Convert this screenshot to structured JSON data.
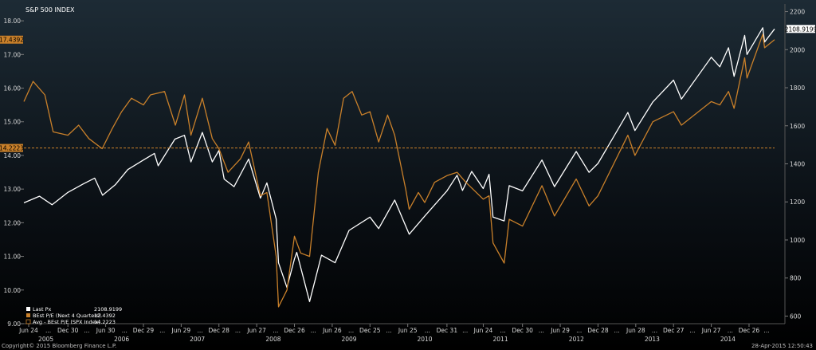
{
  "chart_data": {
    "type": "line",
    "title": "S&P 500 INDEX",
    "x_range": [
      "2005-06-01",
      "2015-04-28"
    ],
    "y_left_range": [
      9.0,
      18.5
    ],
    "y_right_range": [
      560,
      2240
    ],
    "y_left_ticks": [
      "9.00",
      "10.00",
      "11.00",
      "12.00",
      "13.00",
      "14.00",
      "15.00",
      "16.00",
      "17.00",
      "18.00"
    ],
    "y_right_ticks": [
      "600",
      "800",
      "1000",
      "1200",
      "1400",
      "1600",
      "1800",
      "2000",
      "2200"
    ],
    "x_ticks": [
      {
        "label": "Jun 24",
        "date": "2005-06-24"
      },
      {
        "label": "Dec 30",
        "date": "2005-12-30"
      },
      {
        "label": "Jun 30",
        "date": "2006-06-30"
      },
      {
        "label": "Dec 29",
        "date": "2006-12-29"
      },
      {
        "label": "Jun 29",
        "date": "2007-06-29"
      },
      {
        "label": "Dec 28",
        "date": "2007-12-28"
      },
      {
        "label": "Jun 27",
        "date": "2008-06-27"
      },
      {
        "label": "Dec 26",
        "date": "2008-12-26"
      },
      {
        "label": "Jun 26",
        "date": "2009-06-26"
      },
      {
        "label": "Dec 25",
        "date": "2009-12-25"
      },
      {
        "label": "Jun 25",
        "date": "2010-06-25"
      },
      {
        "label": "Dec 31",
        "date": "2010-12-31"
      },
      {
        "label": "Jun 24",
        "date": "2011-06-24"
      },
      {
        "label": "Dec 30",
        "date": "2011-12-30"
      },
      {
        "label": "Jun 29",
        "date": "2012-06-29"
      },
      {
        "label": "Dec 28",
        "date": "2012-12-28"
      },
      {
        "label": "Jun 28",
        "date": "2013-06-28"
      },
      {
        "label": "Dec 27",
        "date": "2013-12-27"
      },
      {
        "label": "Jun 27",
        "date": "2014-06-27"
      },
      {
        "label": "Dec 26",
        "date": "2014-12-26"
      }
    ],
    "x_year_labels": [
      {
        "label": "2005",
        "date": "2005-09-15"
      },
      {
        "label": "2006",
        "date": "2006-09-15"
      },
      {
        "label": "2007",
        "date": "2007-09-15"
      },
      {
        "label": "2008",
        "date": "2008-09-15"
      },
      {
        "label": "2009",
        "date": "2009-09-15"
      },
      {
        "label": "2010",
        "date": "2010-09-15"
      },
      {
        "label": "2011",
        "date": "2011-09-15"
      },
      {
        "label": "2012",
        "date": "2012-09-15"
      },
      {
        "label": "2013",
        "date": "2013-09-15"
      },
      {
        "label": "2014",
        "date": "2014-09-15"
      }
    ],
    "x_tick_gap_marker": "...",
    "series": [
      {
        "name": "Last Px",
        "last_value": "2108.9199",
        "axis": "right",
        "color": "#ffffff",
        "points": [
          [
            "2005-06-01",
            1195
          ],
          [
            "2005-08-15",
            1230
          ],
          [
            "2005-10-15",
            1185
          ],
          [
            "2005-12-30",
            1250
          ],
          [
            "2006-03-15",
            1295
          ],
          [
            "2006-05-08",
            1325
          ],
          [
            "2006-06-15",
            1235
          ],
          [
            "2006-08-15",
            1290
          ],
          [
            "2006-10-15",
            1370
          ],
          [
            "2006-12-29",
            1420
          ],
          [
            "2007-02-20",
            1455
          ],
          [
            "2007-03-10",
            1390
          ],
          [
            "2007-05-30",
            1530
          ],
          [
            "2007-07-15",
            1550
          ],
          [
            "2007-08-15",
            1410
          ],
          [
            "2007-10-09",
            1565
          ],
          [
            "2007-11-26",
            1410
          ],
          [
            "2007-12-28",
            1470
          ],
          [
            "2008-01-22",
            1320
          ],
          [
            "2008-03-10",
            1280
          ],
          [
            "2008-05-19",
            1425
          ],
          [
            "2008-07-15",
            1220
          ],
          [
            "2008-08-15",
            1300
          ],
          [
            "2008-09-29",
            1110
          ],
          [
            "2008-10-10",
            880
          ],
          [
            "2008-11-20",
            750
          ],
          [
            "2008-12-26",
            900
          ],
          [
            "2009-01-06",
            935
          ],
          [
            "2009-03-09",
            676
          ],
          [
            "2009-05-05",
            920
          ],
          [
            "2009-07-10",
            880
          ],
          [
            "2009-09-15",
            1050
          ],
          [
            "2009-12-25",
            1120
          ],
          [
            "2010-02-05",
            1060
          ],
          [
            "2010-04-23",
            1210
          ],
          [
            "2010-07-02",
            1030
          ],
          [
            "2010-09-15",
            1125
          ],
          [
            "2010-12-31",
            1258
          ],
          [
            "2011-02-18",
            1340
          ],
          [
            "2011-03-16",
            1260
          ],
          [
            "2011-04-29",
            1360
          ],
          [
            "2011-06-24",
            1270
          ],
          [
            "2011-07-22",
            1345
          ],
          [
            "2011-08-10",
            1120
          ],
          [
            "2011-10-03",
            1100
          ],
          [
            "2011-10-27",
            1285
          ],
          [
            "2011-12-30",
            1258
          ],
          [
            "2012-04-02",
            1420
          ],
          [
            "2012-06-01",
            1280
          ],
          [
            "2012-09-14",
            1465
          ],
          [
            "2012-11-15",
            1355
          ],
          [
            "2012-12-28",
            1402
          ],
          [
            "2013-05-21",
            1670
          ],
          [
            "2013-06-24",
            1575
          ],
          [
            "2013-09-18",
            1725
          ],
          [
            "2013-12-27",
            1840
          ],
          [
            "2014-02-03",
            1740
          ],
          [
            "2014-06-27",
            1960
          ],
          [
            "2014-08-07",
            1910
          ],
          [
            "2014-09-18",
            2010
          ],
          [
            "2014-10-15",
            1860
          ],
          [
            "2014-12-05",
            2075
          ],
          [
            "2014-12-16",
            1975
          ],
          [
            "2015-03-02",
            2115
          ],
          [
            "2015-03-11",
            2040
          ],
          [
            "2015-04-28",
            2108.92
          ]
        ]
      },
      {
        "name": "BEst P/E (Next 4 Quarters)",
        "last_value": "17.4392",
        "axis": "left",
        "color": "#c9802a",
        "points": [
          [
            "2005-06-01",
            15.6
          ],
          [
            "2005-07-15",
            16.2
          ],
          [
            "2005-09-10",
            15.8
          ],
          [
            "2005-10-20",
            14.7
          ],
          [
            "2005-12-30",
            14.6
          ],
          [
            "2006-02-20",
            14.9
          ],
          [
            "2006-04-10",
            14.5
          ],
          [
            "2006-06-13",
            14.2
          ],
          [
            "2006-08-01",
            14.8
          ],
          [
            "2006-09-15",
            15.3
          ],
          [
            "2006-11-01",
            15.7
          ],
          [
            "2006-12-29",
            15.5
          ],
          [
            "2007-02-01",
            15.8
          ],
          [
            "2007-04-10",
            15.9
          ],
          [
            "2007-06-01",
            14.9
          ],
          [
            "2007-07-15",
            15.8
          ],
          [
            "2007-08-15",
            14.6
          ],
          [
            "2007-10-09",
            15.7
          ],
          [
            "2007-11-26",
            14.5
          ],
          [
            "2007-12-28",
            14.2
          ],
          [
            "2008-02-10",
            13.5
          ],
          [
            "2008-04-10",
            13.9
          ],
          [
            "2008-05-19",
            14.4
          ],
          [
            "2008-07-15",
            12.8
          ],
          [
            "2008-08-15",
            12.9
          ],
          [
            "2008-09-29",
            11.0
          ],
          [
            "2008-10-10",
            9.5
          ],
          [
            "2008-11-20",
            10.0
          ],
          [
            "2008-12-26",
            11.6
          ],
          [
            "2009-01-25",
            11.1
          ],
          [
            "2009-03-09",
            11.0
          ],
          [
            "2009-04-20",
            13.5
          ],
          [
            "2009-06-01",
            14.8
          ],
          [
            "2009-07-10",
            14.3
          ],
          [
            "2009-08-20",
            15.7
          ],
          [
            "2009-09-30",
            15.9
          ],
          [
            "2009-11-15",
            15.2
          ],
          [
            "2009-12-25",
            15.3
          ],
          [
            "2010-02-05",
            14.4
          ],
          [
            "2010-03-20",
            15.2
          ],
          [
            "2010-04-23",
            14.6
          ],
          [
            "2010-06-15",
            13.0
          ],
          [
            "2010-07-02",
            12.4
          ],
          [
            "2010-08-15",
            12.9
          ],
          [
            "2010-09-15",
            12.6
          ],
          [
            "2010-11-01",
            13.2
          ],
          [
            "2010-12-31",
            13.4
          ],
          [
            "2011-02-18",
            13.5
          ],
          [
            "2011-04-01",
            13.2
          ],
          [
            "2011-06-24",
            12.7
          ],
          [
            "2011-07-22",
            12.8
          ],
          [
            "2011-08-10",
            11.4
          ],
          [
            "2011-10-03",
            10.8
          ],
          [
            "2011-10-27",
            12.1
          ],
          [
            "2011-12-30",
            11.9
          ],
          [
            "2012-04-02",
            13.1
          ],
          [
            "2012-06-01",
            12.2
          ],
          [
            "2012-09-14",
            13.3
          ],
          [
            "2012-11-15",
            12.5
          ],
          [
            "2012-12-28",
            12.8
          ],
          [
            "2013-05-21",
            14.6
          ],
          [
            "2013-06-24",
            14.0
          ],
          [
            "2013-09-18",
            15.0
          ],
          [
            "2013-12-27",
            15.3
          ],
          [
            "2014-02-03",
            14.9
          ],
          [
            "2014-06-27",
            15.6
          ],
          [
            "2014-08-07",
            15.5
          ],
          [
            "2014-09-18",
            15.9
          ],
          [
            "2014-10-15",
            15.4
          ],
          [
            "2014-12-05",
            16.9
          ],
          [
            "2014-12-16",
            16.3
          ],
          [
            "2015-03-02",
            17.6
          ],
          [
            "2015-03-11",
            17.2
          ],
          [
            "2015-04-28",
            17.44
          ]
        ]
      },
      {
        "name": "Avg - BEst P/E (SPX Index)",
        "last_value": "14.2223",
        "axis": "left",
        "color": "#c9802a",
        "style": "dashed",
        "points": [
          [
            "2005-06-01",
            14.2223
          ],
          [
            "2015-04-28",
            14.2223
          ]
        ]
      }
    ],
    "legend_placement": "bottom-left",
    "grid": false
  },
  "footer": {
    "copyright": "Copyright© 2015 Bloomberg Finance L.P.",
    "timestamp": "28-Apr-2015 12:50:43"
  },
  "colors": {
    "background_top": "#1d2b35",
    "background_bottom": "#000000",
    "price_line": "#ffffff",
    "pe_line": "#c9802a"
  }
}
